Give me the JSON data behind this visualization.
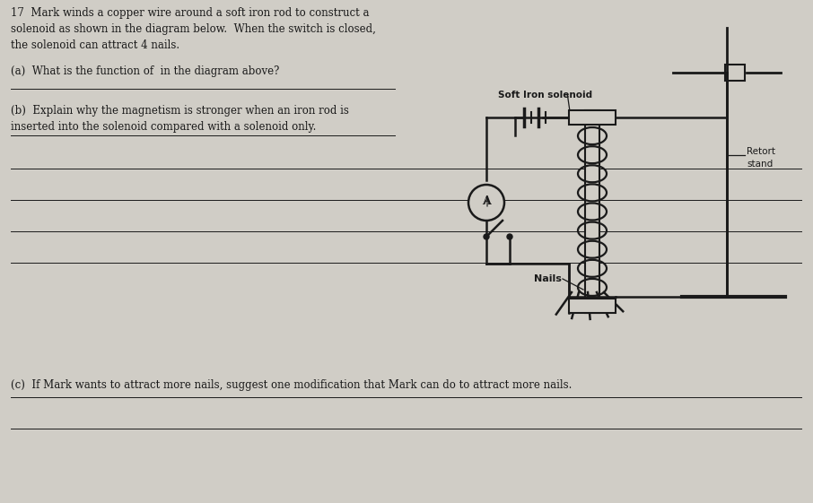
{
  "bg_color": "#d0cdc6",
  "text_color": "#1a1a1a",
  "line_color": "#1a1a1a",
  "title": "17  Mark winds a copper wire around a soft iron rod to construct a\nsolenoid as shown in the diagram below.  When the switch is closed,\nthe solenoid can attract 4 nails.",
  "qa": "(a)  What is the function of  in the diagram above?",
  "qb_title": "(b)  Explain why the magnetism is stronger when an iron rod is\ninserted into the solenoid compared with a solenoid only.",
  "qc": "(c)  If Mark wants to attract more nails, suggest one modification that Mark can do to attract more nails.",
  "label_solenoid": "Soft Iron solenoid",
  "label_retort": "Retort\nstand",
  "label_nails": "Nails"
}
